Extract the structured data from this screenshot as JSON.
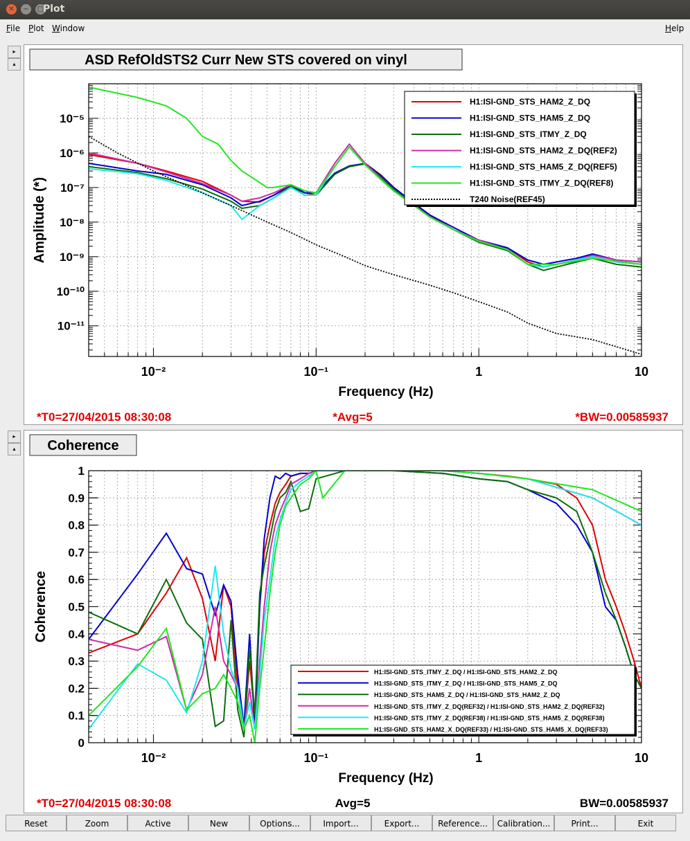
{
  "window": {
    "title": "Plot"
  },
  "menu": {
    "file": "File",
    "plot": "Plot",
    "window": "Window",
    "help": "Help"
  },
  "toolbar": [
    "Reset",
    "Zoom",
    "Active",
    "New",
    "Options...",
    "Import...",
    "Export...",
    "Reference...",
    "Calibration...",
    "Print...",
    "Exit"
  ],
  "colors": {
    "red": "#e00000",
    "blue": "#0000d0",
    "dkgreen": "#0a6e0a",
    "magenta": "#d02ba8",
    "cyan": "#1ee8ef",
    "green": "#22e622",
    "black": "#000000",
    "status": "#e00000"
  },
  "chart_data": [
    {
      "type": "line",
      "title": "ASD RefOldSTS2 Curr New STS covered on vinyl",
      "xlabel": "Frequency (Hz)",
      "ylabel": "Amplitude (*)",
      "xscale": "log",
      "yscale": "log",
      "xlim": [
        0.004,
        10
      ],
      "ylim": [
        1.3e-12,
        0.0001
      ],
      "grid": true,
      "legend_position": "top-right",
      "xticks": [
        {
          "v": 0.01,
          "label": "10⁻²"
        },
        {
          "v": 0.1,
          "label": "10⁻¹"
        },
        {
          "v": 1,
          "label": "1"
        },
        {
          "v": 10,
          "label": "10"
        }
      ],
      "yticks": [
        {
          "v": 1e-11,
          "label": "10⁻¹¹"
        },
        {
          "v": 1e-10,
          "label": "10⁻¹⁰"
        },
        {
          "v": 1e-09,
          "label": "10⁻⁹"
        },
        {
          "v": 1e-08,
          "label": "10⁻⁸"
        },
        {
          "v": 1e-07,
          "label": "10⁻⁷"
        },
        {
          "v": 1e-06,
          "label": "10⁻⁶"
        },
        {
          "v": 1e-05,
          "label": "10⁻⁵"
        }
      ],
      "status": {
        "t0": "*T0=27/04/2015 08:30:08",
        "avg": "*Avg=5",
        "bw": "*BW=0.00585937"
      },
      "series": [
        {
          "name": "H1:ISI-GND_STS_HAM2_Z_DQ",
          "color": "#e00000",
          "x": [
            0.004,
            0.008,
            0.012,
            0.02,
            0.03,
            0.035,
            0.045,
            0.055,
            0.07,
            0.085,
            0.1,
            0.13,
            0.16,
            0.2,
            0.25,
            0.3,
            0.4,
            0.5,
            0.7,
            1,
            1.5,
            2,
            2.5,
            3,
            4,
            5,
            7,
            10
          ],
          "y": [
            9e-07,
            5e-07,
            3e-07,
            1.5e-07,
            6e-08,
            4e-08,
            3.8e-08,
            6e-08,
            1.1e-07,
            7e-08,
            6e-08,
            2.5e-07,
            4e-07,
            5e-07,
            2.3e-07,
            1e-07,
            3.5e-08,
            1.5e-08,
            6e-09,
            3e-09,
            1.8e-09,
            7e-10,
            5e-10,
            6e-10,
            8e-10,
            1e-09,
            7e-10,
            6e-10
          ]
        },
        {
          "name": "H1:ISI-GND_STS_HAM5_Z_DQ",
          "color": "#0000d0",
          "x": [
            0.004,
            0.008,
            0.012,
            0.02,
            0.03,
            0.035,
            0.045,
            0.055,
            0.07,
            0.085,
            0.1,
            0.13,
            0.16,
            0.2,
            0.25,
            0.3,
            0.4,
            0.5,
            0.7,
            1,
            1.5,
            2,
            2.5,
            3,
            4,
            5,
            7,
            10
          ],
          "y": [
            5e-07,
            3e-07,
            2.4e-07,
            1.2e-07,
            5e-08,
            3e-08,
            4e-08,
            6e-08,
            1.2e-07,
            7e-08,
            7e-08,
            2.6e-07,
            4.2e-07,
            5e-07,
            2.2e-07,
            1e-07,
            3.5e-08,
            1.6e-08,
            7e-09,
            3e-09,
            1.8e-09,
            8e-10,
            6e-10,
            7e-10,
            9e-10,
            1.2e-09,
            8e-10,
            7e-10
          ]
        },
        {
          "name": "H1:ISI-GND_STS_ITMY_Z_DQ",
          "color": "#0a6e0a",
          "x": [
            0.004,
            0.008,
            0.012,
            0.02,
            0.03,
            0.035,
            0.045,
            0.055,
            0.07,
            0.085,
            0.1,
            0.13,
            0.16,
            0.2,
            0.25,
            0.3,
            0.4,
            0.5,
            0.7,
            1,
            1.5,
            2,
            2.5,
            3,
            4,
            5,
            7,
            10
          ],
          "y": [
            4e-07,
            2.7e-07,
            1.8e-07,
            9e-08,
            4e-08,
            2.5e-08,
            3e-08,
            5e-08,
            1.1e-07,
            6e-08,
            6e-08,
            2.4e-07,
            4e-07,
            4.8e-07,
            2e-07,
            9e-08,
            3e-08,
            1.4e-08,
            6e-09,
            2.6e-09,
            1.5e-09,
            6e-10,
            4e-10,
            5e-10,
            7e-10,
            9e-10,
            6e-10,
            5e-10
          ]
        },
        {
          "name": "H1:ISI-GND_STS_HAM2_Z_DQ(REF2)",
          "color": "#d02ba8",
          "x": [
            0.004,
            0.008,
            0.012,
            0.02,
            0.03,
            0.035,
            0.045,
            0.055,
            0.07,
            0.085,
            0.1,
            0.13,
            0.16,
            0.2,
            0.25,
            0.3,
            0.4,
            0.5,
            0.7,
            1,
            1.5,
            2,
            2.5,
            3,
            4,
            5,
            7,
            10
          ],
          "y": [
            1e-06,
            5e-07,
            2.8e-07,
            1.3e-07,
            6e-08,
            4e-08,
            5e-08,
            7e-08,
            1.2e-07,
            8e-08,
            7e-08,
            5e-07,
            1.8e-06,
            5e-07,
            1.8e-07,
            8e-08,
            3e-08,
            1.4e-08,
            6e-09,
            3e-09,
            1.6e-09,
            6e-10,
            5e-10,
            6e-10,
            8e-10,
            1.1e-09,
            8e-10,
            7e-10
          ]
        },
        {
          "name": "H1:ISI-GND_STS_HAM5_Z_DQ(REF5)",
          "color": "#1ee8ef",
          "x": [
            0.004,
            0.008,
            0.012,
            0.02,
            0.03,
            0.035,
            0.045,
            0.055,
            0.07,
            0.085,
            0.1,
            0.13,
            0.16,
            0.2,
            0.25,
            0.3,
            0.4,
            0.5,
            0.7,
            1,
            1.5,
            2,
            2.5,
            3,
            4,
            5,
            7,
            10
          ],
          "y": [
            3.5e-07,
            2.5e-07,
            1.6e-07,
            7e-08,
            3e-08,
            1.2e-08,
            3e-08,
            5e-08,
            1e-07,
            6e-08,
            6e-08,
            4e-07,
            1.5e-06,
            4.5e-07,
            1.7e-07,
            8e-08,
            3e-08,
            1.4e-08,
            6e-09,
            2.8e-09,
            1.6e-09,
            6e-10,
            5e-10,
            6e-10,
            8e-10,
            1e-09,
            7e-10,
            6e-10
          ]
        },
        {
          "name": "H1:ISI-GND_STS_ITMY_Z_DQ(REF8)",
          "color": "#22e622",
          "x": [
            0.004,
            0.008,
            0.012,
            0.016,
            0.02,
            0.025,
            0.03,
            0.035,
            0.04,
            0.05,
            0.055,
            0.07,
            0.085,
            0.1,
            0.13,
            0.16,
            0.2,
            0.25,
            0.3,
            0.4,
            0.5,
            0.7,
            1,
            1.5,
            2,
            3,
            5,
            10
          ],
          "y": [
            8e-05,
            4e-05,
            2.3e-05,
            1e-05,
            3e-06,
            1.8e-06,
            6e-07,
            3e-07,
            2e-07,
            1e-07,
            1e-07,
            1.2e-07,
            8e-08,
            7e-08,
            4e-07,
            1.5e-06,
            4.5e-07,
            1.7e-07,
            8e-08,
            3e-08,
            1.4e-08,
            6e-09,
            2.8e-09,
            1.6e-09,
            6e-10,
            6e-10,
            9e-10,
            6e-10
          ]
        },
        {
          "name": "T240 Noise(REF45)",
          "color": "#000000",
          "dashed": true,
          "x": [
            0.004,
            0.006,
            0.01,
            0.015,
            0.02,
            0.03,
            0.05,
            0.07,
            0.1,
            0.15,
            0.2,
            0.3,
            0.5,
            0.7,
            1,
            1.5,
            2,
            3,
            5,
            7,
            10
          ],
          "y": [
            3e-06,
            1e-06,
            3e-07,
            1.3e-07,
            7e-08,
            3e-08,
            1e-08,
            5e-09,
            2.2e-09,
            1e-09,
            5.5e-10,
            3e-10,
            1.5e-10,
            9e-11,
            5e-11,
            2.5e-11,
            1.2e-11,
            6e-12,
            4e-12,
            2.5e-12,
            1.5e-12
          ]
        }
      ]
    },
    {
      "type": "line",
      "title": "Coherence",
      "xlabel": "Frequency (Hz)",
      "ylabel": "Coherence",
      "xscale": "log",
      "xlim": [
        0.004,
        10
      ],
      "ylim": [
        0,
        1
      ],
      "grid": true,
      "legend_position": "bottom-right",
      "xticks": [
        {
          "v": 0.01,
          "label": "10⁻²"
        },
        {
          "v": 0.1,
          "label": "10⁻¹"
        },
        {
          "v": 1,
          "label": "1"
        },
        {
          "v": 10,
          "label": "10"
        }
      ],
      "yticks": [
        {
          "v": 0,
          "label": "0"
        },
        {
          "v": 0.1,
          "label": "0.1"
        },
        {
          "v": 0.2,
          "label": "0.2"
        },
        {
          "v": 0.3,
          "label": "0.3"
        },
        {
          "v": 0.4,
          "label": "0.4"
        },
        {
          "v": 0.5,
          "label": "0.5"
        },
        {
          "v": 0.6,
          "label": "0.6"
        },
        {
          "v": 0.7,
          "label": "0.7"
        },
        {
          "v": 0.8,
          "label": "0.8"
        },
        {
          "v": 0.9,
          "label": "0.9"
        },
        {
          "v": 1,
          "label": "1"
        }
      ],
      "status": {
        "t0": "*T0=27/04/2015 08:30:08",
        "avg": "Avg=5",
        "bw": "BW=0.00585937"
      },
      "series": [
        {
          "name": "H1:ISI-GND_STS_ITMY_Z_DQ / H1:ISI-GND_STS_HAM2_Z_DQ",
          "color": "#e00000",
          "x": [
            0.004,
            0.008,
            0.012,
            0.016,
            0.02,
            0.024,
            0.027,
            0.03,
            0.033,
            0.036,
            0.039,
            0.042,
            0.045,
            0.048,
            0.052,
            0.056,
            0.06,
            0.065,
            0.07,
            0.08,
            0.09,
            0.1,
            0.15,
            0.3,
            0.6,
            1,
            1.5,
            2,
            3,
            4,
            5,
            6,
            7,
            8,
            9,
            10
          ],
          "y": [
            0.33,
            0.4,
            0.55,
            0.68,
            0.53,
            0.3,
            0.58,
            0.5,
            0.2,
            0.05,
            0.3,
            0.1,
            0.5,
            0.7,
            0.8,
            0.88,
            0.92,
            0.95,
            0.98,
            0.99,
            0.99,
            1,
            1,
            1,
            1,
            0.99,
            0.98,
            0.97,
            0.95,
            0.9,
            0.8,
            0.6,
            0.5,
            0.4,
            0.3,
            0.2
          ]
        },
        {
          "name": "H1:ISI-GND_STS_ITMY_Z_DQ / H1:ISI-GND_STS_HAM5_Z_DQ",
          "color": "#0000d0",
          "x": [
            0.004,
            0.008,
            0.012,
            0.016,
            0.02,
            0.024,
            0.027,
            0.03,
            0.033,
            0.036,
            0.039,
            0.042,
            0.045,
            0.048,
            0.052,
            0.056,
            0.06,
            0.065,
            0.07,
            0.08,
            0.09,
            0.1,
            0.15,
            0.3,
            0.6,
            1,
            1.5,
            2,
            3,
            4,
            5,
            6,
            7,
            8,
            9,
            10
          ],
          "y": [
            0.38,
            0.62,
            0.77,
            0.64,
            0.62,
            0.47,
            0.58,
            0.52,
            0.25,
            0.06,
            0.4,
            0.05,
            0.5,
            0.75,
            0.9,
            0.98,
            0.97,
            0.99,
            0.98,
            0.99,
            0.99,
            1,
            1,
            1,
            0.99,
            0.97,
            0.96,
            0.93,
            0.88,
            0.8,
            0.7,
            0.5,
            0.45,
            0.35,
            0.25,
            0.2
          ]
        },
        {
          "name": "H1:ISI-GND_STS_HAM5_Z_DQ / H1:ISI-GND_STS_HAM2_Z_DQ",
          "color": "#0a6e0a",
          "x": [
            0.004,
            0.008,
            0.012,
            0.016,
            0.02,
            0.024,
            0.027,
            0.03,
            0.033,
            0.036,
            0.039,
            0.042,
            0.045,
            0.048,
            0.052,
            0.056,
            0.06,
            0.065,
            0.07,
            0.08,
            0.09,
            0.1,
            0.15,
            0.3,
            0.6,
            1,
            1.5,
            2,
            3,
            4,
            5,
            6,
            7,
            8,
            9,
            10
          ],
          "y": [
            0.48,
            0.4,
            0.6,
            0.44,
            0.38,
            0.06,
            0.08,
            0.45,
            0.12,
            0.02,
            0.35,
            0.1,
            0.55,
            0.65,
            0.75,
            0.85,
            0.9,
            0.92,
            0.96,
            0.85,
            0.86,
            0.97,
            1,
            1,
            0.99,
            0.97,
            0.96,
            0.93,
            0.9,
            0.85,
            0.7,
            0.55,
            0.45,
            0.35,
            0.25,
            0.2
          ]
        },
        {
          "name": "H1:ISI-GND_STS_ITMY_Z_DQ(REF32) / H1:ISI-GND_STS_HAM2_Z_DQ(REF32)",
          "color": "#d02ba8",
          "x": [
            0.004,
            0.008,
            0.012,
            0.016,
            0.02,
            0.024,
            0.027,
            0.03,
            0.033,
            0.036,
            0.039,
            0.042,
            0.045,
            0.048,
            0.052,
            0.056,
            0.06,
            0.065,
            0.07,
            0.08,
            0.09,
            0.1,
            0.15,
            0.3,
            0.6,
            1,
            2,
            5,
            10
          ],
          "y": [
            0.38,
            0.34,
            0.39,
            0.12,
            0.25,
            0.5,
            0.3,
            0.25,
            0.2,
            0.05,
            0.2,
            0.05,
            0.3,
            0.5,
            0.7,
            0.8,
            0.85,
            0.9,
            0.95,
            0.97,
            0.99,
            1,
            1,
            1,
            1,
            0.99,
            0.97,
            0.9,
            0.8
          ]
        },
        {
          "name": "H1:ISI-GND_STS_ITMY_Z_DQ(REF38) / H1:ISI-GND_STS_HAM5_Z_DQ(REF38)",
          "color": "#1ee8ef",
          "x": [
            0.004,
            0.008,
            0.012,
            0.016,
            0.02,
            0.024,
            0.027,
            0.03,
            0.033,
            0.036,
            0.039,
            0.042,
            0.045,
            0.048,
            0.052,
            0.056,
            0.06,
            0.065,
            0.07,
            0.08,
            0.09,
            0.1,
            0.15,
            0.3,
            0.6,
            1,
            2,
            5,
            10
          ],
          "y": [
            0.05,
            0.29,
            0.23,
            0.11,
            0.3,
            0.65,
            0.4,
            0.27,
            0.2,
            0.05,
            0.15,
            0.05,
            0.25,
            0.45,
            0.6,
            0.75,
            0.82,
            0.88,
            0.93,
            0.96,
            0.98,
            1,
            1,
            1,
            1,
            0.99,
            0.97,
            0.9,
            0.8
          ]
        },
        {
          "name": "H1:ISI-GND_STS_HAM2_X_DQ(REF33) / H1:ISI-GND_STS_HAM5_X_DQ(REF33)",
          "color": "#22e622",
          "x": [
            0.004,
            0.008,
            0.012,
            0.016,
            0.02,
            0.024,
            0.027,
            0.03,
            0.033,
            0.036,
            0.039,
            0.042,
            0.045,
            0.048,
            0.052,
            0.056,
            0.06,
            0.065,
            0.07,
            0.08,
            0.09,
            0.1,
            0.11,
            0.15,
            0.3,
            0.6,
            1,
            2,
            5,
            10
          ],
          "y": [
            0.1,
            0.28,
            0.42,
            0.12,
            0.18,
            0.2,
            0.25,
            0.2,
            0.15,
            0.05,
            0.1,
            0.0,
            0.2,
            0.35,
            0.55,
            0.7,
            0.8,
            0.87,
            0.9,
            0.95,
            0.97,
            1,
            0.9,
            1,
            1,
            1,
            0.99,
            0.97,
            0.93,
            0.85
          ]
        }
      ]
    }
  ]
}
